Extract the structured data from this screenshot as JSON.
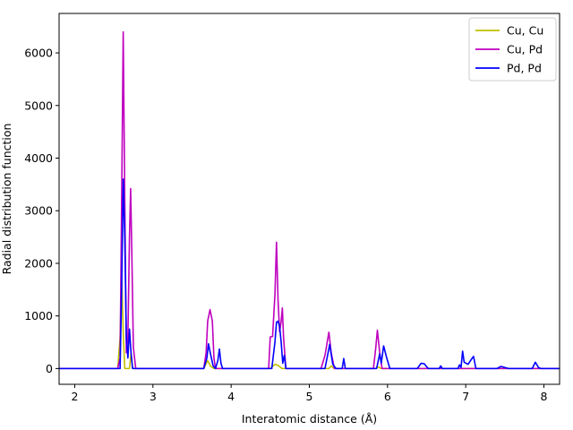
{
  "chart_data": {
    "type": "line",
    "title": "",
    "xlabel": "Interatomic distance (Å)",
    "ylabel": "Radial distribution function",
    "xlim": [
      1.8,
      8.2
    ],
    "ylim": [
      -300,
      6750
    ],
    "xticks": [
      2,
      3,
      4,
      5,
      6,
      7,
      8
    ],
    "yticks": [
      0,
      1000,
      2000,
      3000,
      4000,
      5000,
      6000
    ],
    "grid": false,
    "legend_position": "top-right",
    "series": [
      {
        "name": "Cu, Cu",
        "color": "#bfbf00",
        "points": [
          [
            1.8,
            0
          ],
          [
            2.55,
            0
          ],
          [
            2.58,
            600
          ],
          [
            2.6,
            1750
          ],
          [
            2.62,
            700
          ],
          [
            2.64,
            0
          ],
          [
            2.7,
            0
          ],
          [
            2.72,
            300
          ],
          [
            2.74,
            0
          ],
          [
            3.65,
            0
          ],
          [
            3.7,
            150
          ],
          [
            3.74,
            40
          ],
          [
            3.78,
            0
          ],
          [
            4.5,
            0
          ],
          [
            4.56,
            80
          ],
          [
            4.6,
            60
          ],
          [
            4.65,
            0
          ],
          [
            5.25,
            0
          ],
          [
            5.28,
            50
          ],
          [
            5.32,
            0
          ],
          [
            5.85,
            0
          ],
          [
            5.88,
            30
          ],
          [
            5.92,
            0
          ],
          [
            8.2,
            0
          ]
        ]
      },
      {
        "name": "Cu, Pd",
        "color": "#bf00bf",
        "points": [
          [
            1.8,
            0
          ],
          [
            2.55,
            0
          ],
          [
            2.58,
            200
          ],
          [
            2.6,
            3200
          ],
          [
            2.62,
            6400
          ],
          [
            2.64,
            3200
          ],
          [
            2.66,
            300
          ],
          [
            2.68,
            600
          ],
          [
            2.7,
            2500
          ],
          [
            2.715,
            3420
          ],
          [
            2.73,
            2200
          ],
          [
            2.75,
            400
          ],
          [
            2.78,
            0
          ],
          [
            3.65,
            0
          ],
          [
            3.68,
            300
          ],
          [
            3.7,
            900
          ],
          [
            3.73,
            1120
          ],
          [
            3.76,
            900
          ],
          [
            3.78,
            200
          ],
          [
            3.8,
            0
          ],
          [
            4.48,
            0
          ],
          [
            4.5,
            600
          ],
          [
            4.53,
            610
          ],
          [
            4.56,
            1400
          ],
          [
            4.58,
            2400
          ],
          [
            4.6,
            1300
          ],
          [
            4.62,
            700
          ],
          [
            4.64,
            900
          ],
          [
            4.655,
            1150
          ],
          [
            4.67,
            600
          ],
          [
            4.7,
            0
          ],
          [
            5.15,
            0
          ],
          [
            5.2,
            250
          ],
          [
            5.25,
            690
          ],
          [
            5.28,
            300
          ],
          [
            5.32,
            0
          ],
          [
            5.82,
            0
          ],
          [
            5.85,
            400
          ],
          [
            5.87,
            730
          ],
          [
            5.9,
            300
          ],
          [
            5.93,
            0
          ],
          [
            8.2,
            0
          ]
        ]
      },
      {
        "name": "Pd, Pd",
        "color": "#0000ff",
        "points": [
          [
            1.8,
            0
          ],
          [
            2.58,
            0
          ],
          [
            2.6,
            1500
          ],
          [
            2.62,
            3600
          ],
          [
            2.64,
            2500
          ],
          [
            2.66,
            600
          ],
          [
            2.68,
            200
          ],
          [
            2.7,
            750
          ],
          [
            2.72,
            300
          ],
          [
            2.74,
            0
          ],
          [
            3.65,
            0
          ],
          [
            3.69,
            200
          ],
          [
            3.71,
            470
          ],
          [
            3.74,
            250
          ],
          [
            3.77,
            50
          ],
          [
            3.8,
            0
          ],
          [
            3.83,
            150
          ],
          [
            3.85,
            370
          ],
          [
            3.87,
            100
          ],
          [
            3.89,
            0
          ],
          [
            4.52,
            0
          ],
          [
            4.56,
            500
          ],
          [
            4.58,
            880
          ],
          [
            4.6,
            900
          ],
          [
            4.62,
            800
          ],
          [
            4.64,
            500
          ],
          [
            4.66,
            100
          ],
          [
            4.68,
            250
          ],
          [
            4.7,
            0
          ],
          [
            5.2,
            0
          ],
          [
            5.24,
            300
          ],
          [
            5.26,
            460
          ],
          [
            5.3,
            80
          ],
          [
            5.34,
            0
          ],
          [
            5.42,
            0
          ],
          [
            5.44,
            190
          ],
          [
            5.46,
            0
          ],
          [
            5.86,
            0
          ],
          [
            5.9,
            280
          ],
          [
            5.92,
            100
          ],
          [
            5.95,
            430
          ],
          [
            5.99,
            200
          ],
          [
            6.03,
            0
          ],
          [
            6.38,
            0
          ],
          [
            6.43,
            100
          ],
          [
            6.47,
            90
          ],
          [
            6.52,
            0
          ],
          [
            6.66,
            0
          ],
          [
            6.68,
            50
          ],
          [
            6.7,
            0
          ],
          [
            6.9,
            0
          ],
          [
            6.92,
            70
          ],
          [
            6.94,
            20
          ],
          [
            6.96,
            330
          ],
          [
            6.98,
            120
          ],
          [
            7.03,
            80
          ],
          [
            7.07,
            170
          ],
          [
            7.1,
            230
          ],
          [
            7.13,
            0
          ],
          [
            7.4,
            0
          ],
          [
            7.45,
            40
          ],
          [
            7.5,
            20
          ],
          [
            7.55,
            0
          ],
          [
            7.85,
            0
          ],
          [
            7.89,
            120
          ],
          [
            7.93,
            20
          ],
          [
            7.96,
            0
          ],
          [
            8.2,
            0
          ]
        ]
      }
    ]
  }
}
